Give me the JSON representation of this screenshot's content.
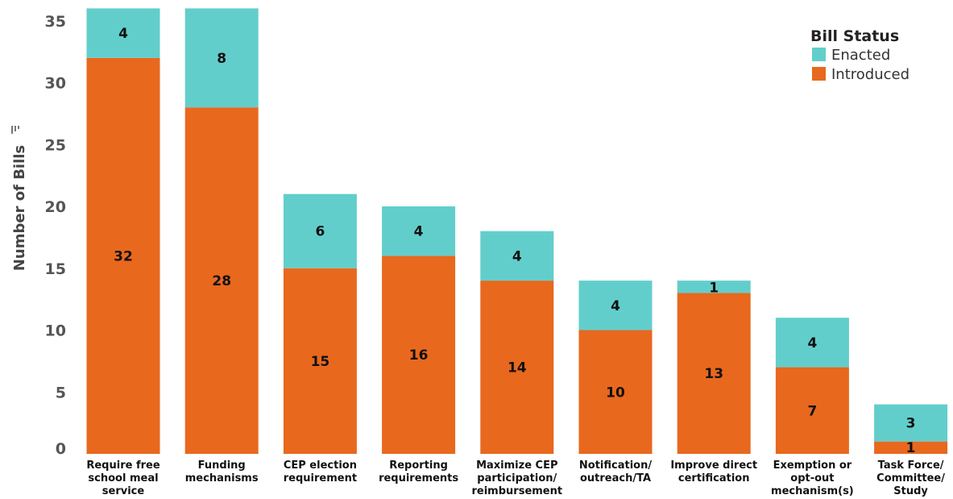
{
  "chart_data": {
    "type": "bar",
    "stacked": true,
    "ylabel": "Number of Bills",
    "ylim": [
      0,
      36
    ],
    "yticks": [
      0,
      5,
      10,
      15,
      20,
      25,
      30,
      35
    ],
    "categories": [
      [
        "Require free",
        "school meal",
        "service"
      ],
      [
        "Funding",
        "mechanisms"
      ],
      [
        "CEP election",
        "requirement"
      ],
      [
        "Reporting",
        "requirements"
      ],
      [
        "Maximize CEP",
        "participation/",
        "reimbursement"
      ],
      [
        "Notification/",
        "outreach/TA"
      ],
      [
        "Improve direct",
        "certification"
      ],
      [
        "Exemption or",
        "opt-out",
        "mechanism(s)"
      ],
      [
        "Task Force/",
        "Committee/",
        "Study"
      ]
    ],
    "series": [
      {
        "name": "Introduced",
        "color": "#E8681E",
        "values": [
          32,
          28,
          15,
          16,
          14,
          10,
          13,
          7,
          1
        ]
      },
      {
        "name": "Enacted",
        "color": "#62CECB",
        "values": [
          4,
          8,
          6,
          4,
          4,
          4,
          1,
          4,
          3
        ]
      }
    ],
    "legend": {
      "title": "Bill Status",
      "position": "top-right",
      "order": [
        "Enacted",
        "Introduced"
      ]
    },
    "grid": false
  }
}
